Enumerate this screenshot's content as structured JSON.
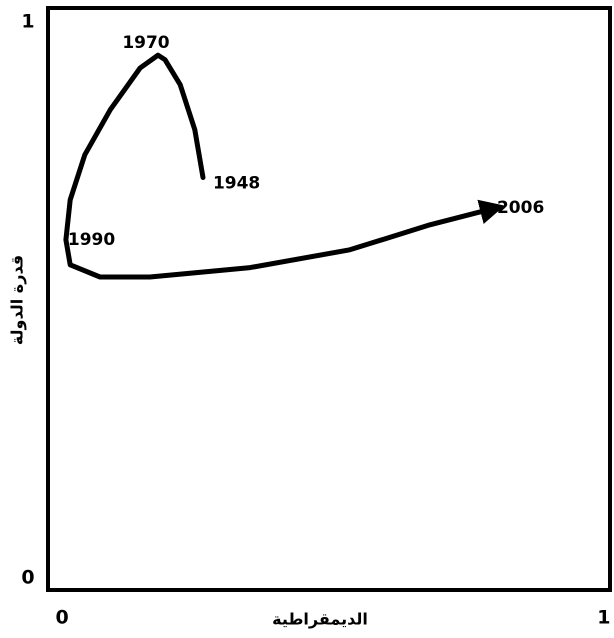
{
  "chart_data": {
    "type": "line",
    "x_label": "الديمقراطية",
    "y_label": "قدرة الدولة",
    "xlim": [
      -0.026,
      1.015
    ],
    "ylim": [
      -0.022,
      1.025
    ],
    "xticks": [
      0,
      1
    ],
    "yticks": [
      0,
      1
    ],
    "color": "#000000",
    "x": [
      0.26,
      0.245,
      0.218,
      0.19,
      0.177,
      0.144,
      0.089,
      0.042,
      0.015,
      0.007,
      0.015,
      0.07,
      0.162,
      0.347,
      0.531,
      0.679,
      0.799
    ],
    "values": [
      0.72,
      0.806,
      0.887,
      0.932,
      0.94,
      0.917,
      0.842,
      0.761,
      0.68,
      0.608,
      0.563,
      0.541,
      0.541,
      0.558,
      0.59,
      0.635,
      0.665
    ],
    "point_labels": [
      "1948",
      null,
      null,
      null,
      "1970",
      null,
      null,
      null,
      null,
      "1990",
      null,
      null,
      null,
      null,
      null,
      null,
      "2006"
    ]
  }
}
